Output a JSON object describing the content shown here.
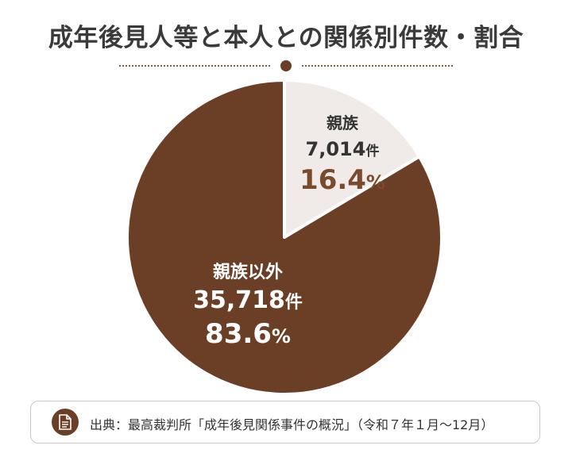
{
  "title": "成年後見人等と本人との関係別件数・割合",
  "source": {
    "text": "出典：最高裁判所「成年後見関係事件の概況」（令和７年１月〜12月）",
    "icon": "document-icon"
  },
  "colors": {
    "relatives_slice": "#f0ebe8",
    "non_relatives_slice": "#6b3f26",
    "accent_text": "#7a4a2c",
    "divider": "#8a5a3c"
  },
  "chart_data": {
    "type": "pie",
    "title": "成年後見人等と本人との関係別件数・割合",
    "slices": [
      {
        "label": "親族",
        "value": 7014,
        "count_text": "7,014",
        "unit": "件",
        "percent": 16.4,
        "percent_text": "16.4",
        "percent_unit": "%"
      },
      {
        "label": "親族以外",
        "value": 35718,
        "count_text": "35,718",
        "unit": "件",
        "percent": 83.6,
        "percent_text": "83.6",
        "percent_unit": "%"
      }
    ]
  }
}
